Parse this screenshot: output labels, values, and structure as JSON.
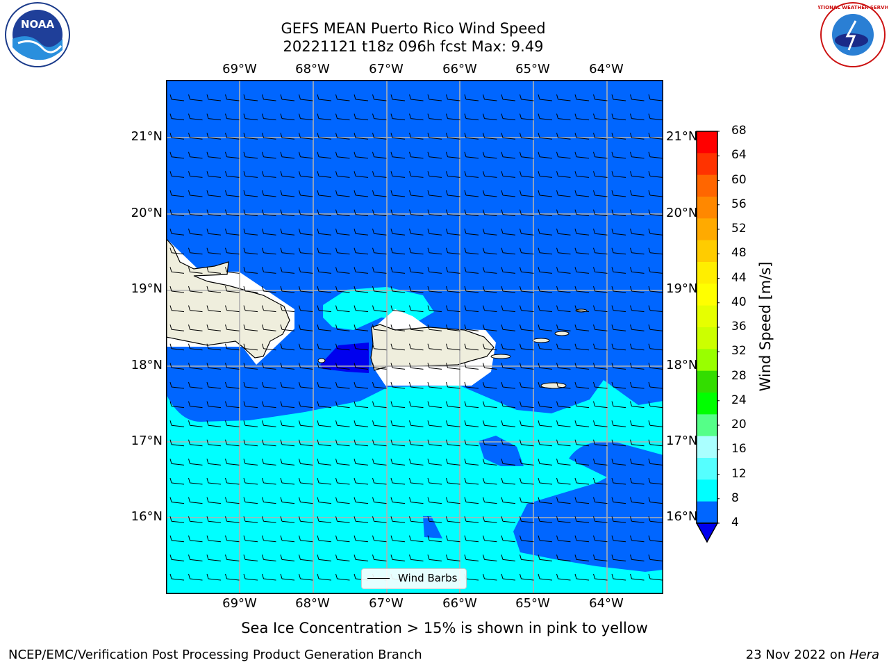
{
  "header": {
    "title_line1": "GEFS MEAN Puerto Rico Wind Speed",
    "title_line2": "20221121 t18z 096h fcst   Max: 9.49"
  },
  "logos": {
    "left": "NOAA",
    "right": "NATIONAL WEATHER SERVICE"
  },
  "map": {
    "lon_labels": [
      "69°W",
      "68°W",
      "67°W",
      "66°W",
      "65°W",
      "64°W"
    ],
    "lat_labels": [
      "21°N",
      "20°N",
      "19°N",
      "18°N",
      "17°N",
      "16°N"
    ],
    "legend_label": "Wind Barbs",
    "colors": {
      "ocean_4_8": "#0066ff",
      "ocean_8_12": "#00ffff",
      "ocean_lt4": "#0000ee",
      "land": "#efeedd"
    }
  },
  "colorbar": {
    "title": "Wind Speed [m/s]",
    "tick_labels": [
      "68",
      "64",
      "60",
      "56",
      "52",
      "48",
      "44",
      "40",
      "36",
      "32",
      "28",
      "24",
      "20",
      "16",
      "12",
      "8",
      "4"
    ],
    "colors": [
      "#ff0000",
      "#ff3300",
      "#ff6600",
      "#ff8800",
      "#ffaa00",
      "#ffcc00",
      "#ffee00",
      "#ffff00",
      "#e6ff00",
      "#ccff00",
      "#99ff00",
      "#33dd00",
      "#00ff00",
      "#55ff88",
      "#aaffff",
      "#55ffff",
      "#00ffff",
      "#0066ff"
    ],
    "under_color": "#0000ee"
  },
  "caption": "Sea Ice Concentration > 15% is shown in pink to yellow",
  "footer": {
    "left": "NCEP/EMC/Verification Post Processing Product Generation Branch",
    "right_prefix": "23 Nov 2022 on ",
    "right_host": "Hera"
  }
}
